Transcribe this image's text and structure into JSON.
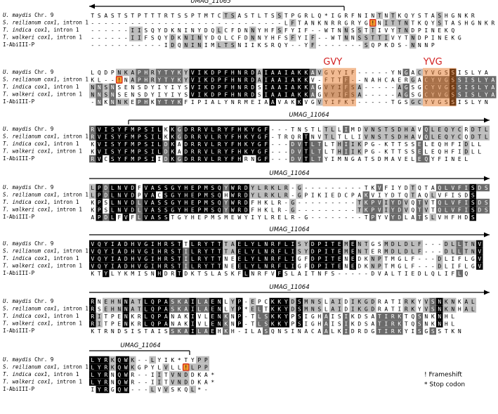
{
  "species": [
    {
      "italic": "U. maydis",
      "plain": " Chr. 9"
    },
    {
      "italic": "S. reilianum cox1",
      "plain": ", intron 1"
    },
    {
      "italic": "T. indica cox1",
      "plain": ", intron 1"
    },
    {
      "italic": "T. walkeri cox1",
      "plain": ", intron 1"
    },
    {
      "plain": "I-AbiIII-P"
    }
  ],
  "blocks": [
    {
      "gene": "UMAG_11065",
      "rows": [
        "TSASTSTPTTTRTSSPTMTCTSASTLTSSTPGRLQ*IGRFNINTNTKQYSTASHGNKR",
        "-----------------------------LFTANKNRRGRYG!NITTNTKQYSTASHGNKR",
        "------IISQYDKNINYDQLCFDNNYHFSFYIF--WTNNSSTTIVYTNDPINEKQ",
        "------IIFSQYDKNINYDQLCFDNNYHFSFYIF--WTNNSSTTIVYTNDPINEKG",
        "-----------IDQNINIMLTSNIIKSRQY--YF-------SQPKDS-NNNP"
      ]
    },
    {
      "motifs": [
        "GVY",
        "YVG"
      ],
      "rows": [
        "LQDPNKAPHRYTYKYVIKDPFHNRDAIAAIAKKAVGVYIF-----YNGACYVGSSISLYA",
        "KL--!NAPHRYTYKYVIKDPFHNRDAIAAIAKKV-FTTF--NAHCAERGACYVGSSISLYA",
        "NNSNSENSDYIYIYSVIKDPFHNRDSIAAIAKKAGVYIFSA-----AGSGCYVGSSISLYA",
        "NNSNSENSDYIYIYSVIKDPFHNRDSIAAIAKKAGVYIFSA-----AGSGCYVGSSISLYA",
        "-NKNNKEPHKYTYKFIPIALYNRMEIAAVAKKVGVYIFKT-----TGSGCYVGSSISLYN"
      ]
    },
    {
      "gene": "UMAG_11064",
      "rows": [
        "RVISYFMPSILKKGDRRVLRYFHKYGF---TNSTLTLLIMDVNSTSDHAVQLEQYCRDTL",
        "RVISYFMPSILKKGDRRVLRYFHKYGF-TRQRTNVTLTLLIVNSTSDHAVQLEQYCQDTL",
        "KVISYFMPSILDKADRRVLRYFHKYGF---DVTLTLTHIIKPG-KTTSSELEQHFIDLL",
        "KVISYFMPSILDKADRRVLRYFHKYGF---DVTLTLTHIIKPG-KTTSSELEQHFIDLL",
        "RVCSYFMPSIIDKGDRRVLRYFHRNGF---DVTLTYIMNGATSDMAVELEQYFINEL"
      ]
    },
    {
      "gene": "UMAG_11064",
      "rows": [
        "LPDLNVDFVASSGYHEPMSQYWRDYLRKLR-G---------TKVFIYDTQTAQLVFISDS",
        "LPDLNVDPVACSGYHEPMSQHWRDYLRKLR-GPIKIEDCPAKVIYDTQTAQLVFISDS",
        "KPSLNVDLVASSGYHEPMSQYWRDFHKLR-G---------TKPVIYDVQTVTQLVFISDS",
        "KPSLNVDLVASSGYHEPMSQYWRDFHKLR-G---------TKPVIYDVQTVTQLVFISDS",
        "APDLFVFLVASSTGYHEPMSMEWYIYLRELR-G--------TPYVYDLATSLVHFHDS"
      ]
    },
    {
      "gene": "UMAG_11064",
      "rows": [
        "VQYIADHVGIHRSTTLRYTTTAELYLNRFLISYDPITEMENTGSMDLDLF---DLLTNV",
        "VQYIADHVGIHRSTILRYTTTAELYLNRFLISYDPITEMENTERMDLDLF---DLLTNV",
        "VQYIADHVGIHRSTILRYTTNEELYLNRFLIGFDPITENEDKNPTMGLF---DLIFLGV",
        "VQYIADHVGIHRSTILRYTTNEELYLNRFLIGFDPITENEDKNPTMGLF---DLIFLGV",
        "KTYLYKMISNHDRTDKTSLASKFLNRFVFSLAITNFS-----DVALTIEDLQLIFLQ"
      ]
    },
    {
      "gene": "UMAG_11064",
      "rows": [
        "RNEHNNATLQPASKAILAENLYP-EPCKKYDSMNSLAIDIKGDRATIRKYVSNKNKAL",
        "RSEHNNATLQPASKAILAENLYP*ELTKKYDSMNSLAIDIKGDRATIRKYVSNKNHAL",
        "RITPENKRLQPANAKIVLENKNP-TLSKKYPSIGHAISIKDSATIRKTQSNKNHL",
        "RITPENKRLQPANAKIVLENKNP-TLSKKYPSIGHAISIKDSATIRKTQSNKNHL",
        "KTRNDSISTAISSKAILAEHKH-ILASQNSINACAALKIDRDGTIRKYISGSSTKN"
      ]
    },
    {
      "gene": "UMAG_11064",
      "rows": [
        "LYRKQWK--LYIK*TYPP",
        "LYRKQWKGPYLVLL!LPP",
        "LYRNQWR--IITVNDDKA*",
        "LYRNQWR--IITVNDDKA*",
        "IYRGQW---LVVSKQL*-"
      ]
    }
  ],
  "legend": [
    "! Frameshift",
    "* Stop codon"
  ]
}
